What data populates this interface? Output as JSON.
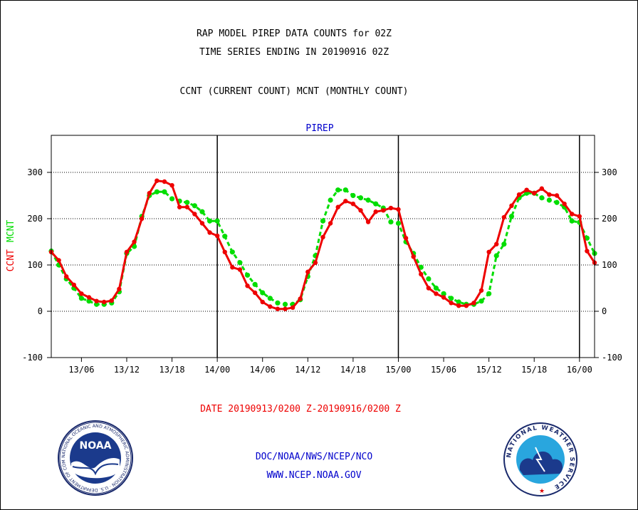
{
  "titles": {
    "line1": "RAP MODEL PIREP DATA COUNTS for 02Z",
    "line2": "TIME SERIES ENDING IN 20190916 02Z",
    "line3": "CCNT (CURRENT COUNT) MCNT (MONTHLY COUNT)"
  },
  "footer": {
    "date_range": "DATE 20190913/0200 Z-20190916/0200 Z",
    "org": "DOC/NOAA/NWS/NCEP/NCO",
    "url": "WWW.NCEP.NOAA.GOV"
  },
  "logos": {
    "noaa": {
      "text": "NOAA",
      "ring_text": "NATIONAL OCEANIC AND ATMOSPHERIC ADMINISTRATION · U.S. DEPARTMENT OF COMMERCE"
    },
    "nws": {
      "ring_text": "NATIONAL WEATHER SERVICE"
    }
  },
  "colors": {
    "ccnt": "#ee0000",
    "mcnt": "#00dd00",
    "title": "#000000",
    "blue": "#0000cc",
    "date": "#ee0000"
  },
  "chart_data": {
    "type": "line",
    "title": "PIREP",
    "xlabel": "",
    "ylabel_parts": [
      {
        "text": "CCNT",
        "color": "#ee0000"
      },
      {
        "text": "MCNT",
        "color": "#00dd00"
      }
    ],
    "ylim": [
      -100,
      380
    ],
    "xlim": [
      0,
      72
    ],
    "yticks": [
      -100,
      0,
      100,
      200,
      300
    ],
    "xtick_positions": [
      4,
      10,
      16,
      22,
      28,
      34,
      40,
      46,
      52,
      58,
      64,
      70
    ],
    "xtick_labels": [
      "13/06",
      "13/12",
      "13/18",
      "14/00",
      "14/06",
      "14/12",
      "14/18",
      "15/00",
      "15/06",
      "15/12",
      "15/18",
      "16/00"
    ],
    "day_boundaries": [
      22,
      46,
      70
    ],
    "gridlines_y": [
      0,
      100,
      200,
      300
    ],
    "x_note": "hours since 20190913/0200 Z",
    "series": [
      {
        "name": "CCNT",
        "color": "#ee0000",
        "values": [
          128,
          110,
          75,
          57,
          38,
          30,
          22,
          20,
          23,
          48,
          128,
          150,
          200,
          255,
          282,
          280,
          272,
          225,
          225,
          210,
          190,
          170,
          163,
          128,
          95,
          90,
          55,
          40,
          20,
          10,
          5,
          5,
          8,
          27,
          85,
          105,
          160,
          190,
          225,
          238,
          232,
          218,
          193,
          215,
          218,
          223,
          220,
          158,
          118,
          80,
          50,
          38,
          30,
          18,
          12,
          12,
          18,
          45,
          128,
          145,
          203,
          228,
          252,
          262,
          255,
          265,
          252,
          250,
          232,
          210,
          205,
          130,
          105
        ]
      },
      {
        "name": "MCNT",
        "color": "#00dd00",
        "values": [
          130,
          100,
          70,
          50,
          28,
          22,
          15,
          15,
          18,
          42,
          125,
          140,
          205,
          250,
          258,
          258,
          243,
          238,
          235,
          228,
          215,
          195,
          195,
          162,
          128,
          105,
          78,
          58,
          40,
          28,
          18,
          15,
          15,
          25,
          75,
          120,
          195,
          240,
          262,
          262,
          250,
          245,
          240,
          232,
          223,
          193,
          190,
          150,
          125,
          95,
          70,
          50,
          38,
          28,
          20,
          15,
          15,
          22,
          38,
          120,
          145,
          205,
          245,
          255,
          255,
          245,
          240,
          235,
          225,
          195,
          192,
          158,
          125
        ]
      }
    ]
  }
}
